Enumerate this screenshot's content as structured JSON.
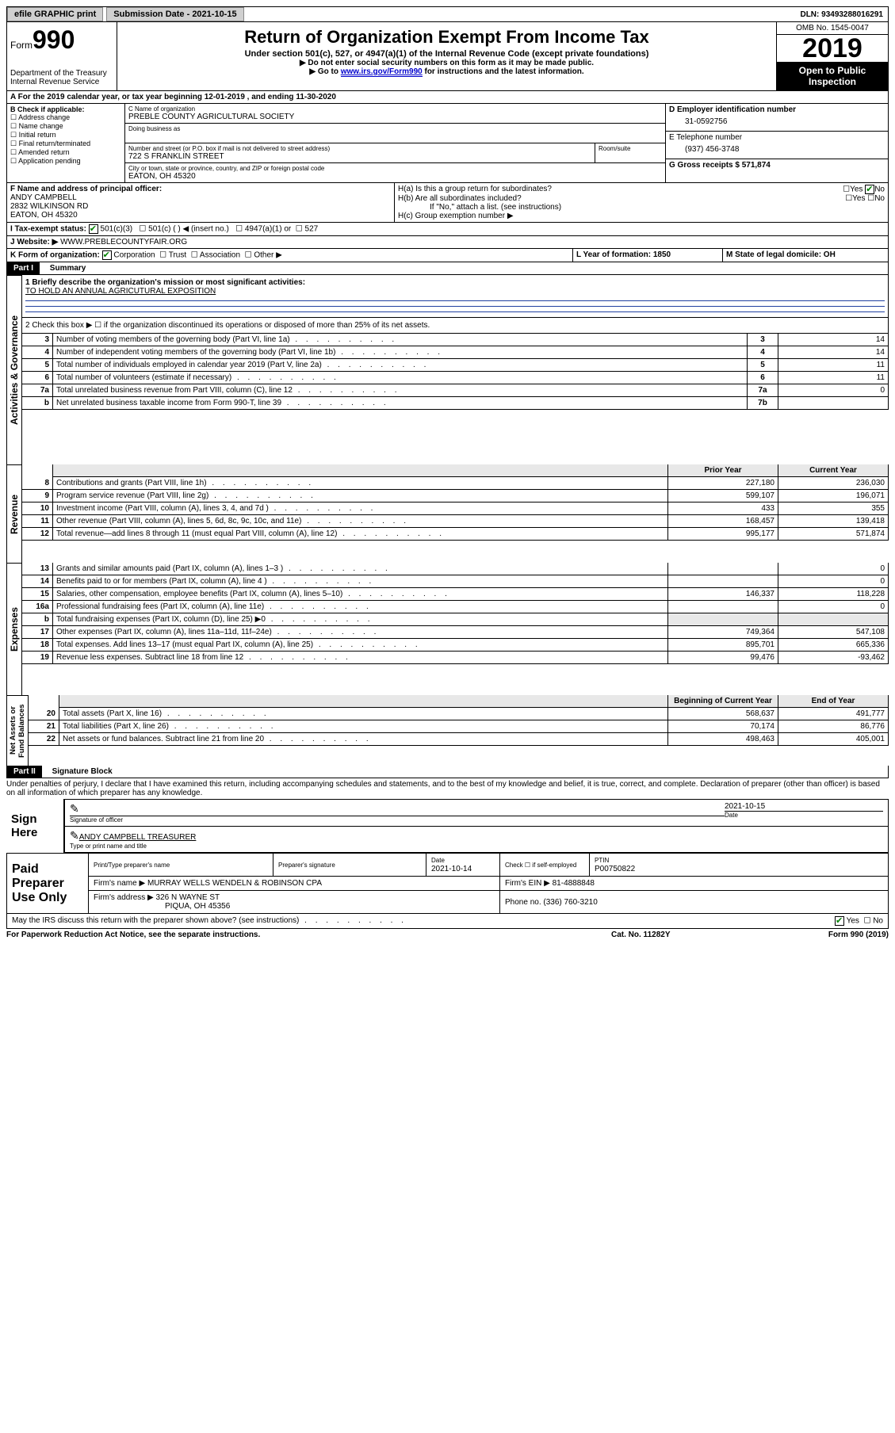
{
  "topbar": {
    "efile": "efile GRAPHIC print",
    "submission_label": "Submission Date - 2021-10-15",
    "dln": "DLN: 93493288016291"
  },
  "header": {
    "form_prefix": "Form",
    "form_number": "990",
    "dept": "Department of the Treasury\nInternal Revenue Service",
    "title": "Return of Organization Exempt From Income Tax",
    "subtitle": "Under section 501(c), 527, or 4947(a)(1) of the Internal Revenue Code (except private foundations)",
    "note1": "▶ Do not enter social security numbers on this form as it may be made public.",
    "note2_pre": "▶ Go to ",
    "note2_link": "www.irs.gov/Form990",
    "note2_post": " for instructions and the latest information.",
    "omb": "OMB No. 1545-0047",
    "year": "2019",
    "inspect": "Open to Public Inspection"
  },
  "A": {
    "line": "A For the 2019 calendar year, or tax year beginning 12-01-2019   , and ending 11-30-2020"
  },
  "B": {
    "label": "B Check if applicable:",
    "opts": [
      "Address change",
      "Name change",
      "Initial return",
      "Final return/terminated",
      "Amended return",
      "Application pending"
    ]
  },
  "C": {
    "name_label": "C Name of organization",
    "name": "PREBLE COUNTY AGRICULTURAL SOCIETY",
    "dba_label": "Doing business as",
    "addr_label": "Number and street (or P.O. box if mail is not delivered to street address)",
    "room_label": "Room/suite",
    "addr": "722 S FRANKLIN STREET",
    "city_label": "City or town, state or province, country, and ZIP or foreign postal code",
    "city": "EATON, OH  45320"
  },
  "D": {
    "label": "D Employer identification number",
    "ein": "31-0592756"
  },
  "E": {
    "label": "E Telephone number",
    "phone": "(937) 456-3748"
  },
  "G": {
    "label": "G Gross receipts $ 571,874"
  },
  "F": {
    "label": "F  Name and address of principal officer:",
    "name": "ANDY CAMPBELL",
    "addr1": "2832 WILKINSON RD",
    "addr2": "EATON, OH  45320"
  },
  "H": {
    "a": "H(a)  Is this a group return for subordinates?",
    "b": "H(b)  Are all subordinates included?",
    "note": "If \"No,\" attach a list. (see instructions)",
    "c": "H(c)  Group exemption number ▶"
  },
  "I": {
    "label": "I    Tax-exempt status:",
    "opts": [
      "501(c)(3)",
      "501(c) (  ) ◀ (insert no.)",
      "4947(a)(1) or",
      "527"
    ]
  },
  "J": {
    "label": "J    Website: ▶",
    "value": "  WWW.PREBLECOUNTYFAIR.ORG"
  },
  "K": {
    "label": "K Form of organization:",
    "opts": [
      "Corporation",
      "Trust",
      "Association",
      "Other ▶"
    ]
  },
  "L": {
    "label": "L Year of formation: 1850"
  },
  "M": {
    "label": "M State of legal domicile: OH"
  },
  "part1": {
    "tag": "Part I",
    "title": "Summary",
    "mission_label": "1   Briefly describe the organization's mission or most significant activities:",
    "mission": "TO HOLD AN ANNUAL AGRICUTURAL EXPOSITION",
    "line2": "2    Check this box ▶ ☐  if the organization discontinued its operations or disposed of more than 25% of its net assets.",
    "gov_label": "Activities & Governance",
    "rev_label": "Revenue",
    "exp_label": "Expenses",
    "na_label": "Net Assets or Fund Balances",
    "prior_header": "Prior Year",
    "current_header": "Current Year",
    "begin_header": "Beginning of Current Year",
    "end_header": "End of Year",
    "rows_gov": [
      {
        "n": "3",
        "t": "Number of voting members of the governing body (Part VI, line 1a)",
        "b": "3",
        "v": "14"
      },
      {
        "n": "4",
        "t": "Number of independent voting members of the governing body (Part VI, line 1b)",
        "b": "4",
        "v": "14"
      },
      {
        "n": "5",
        "t": "Total number of individuals employed in calendar year 2019 (Part V, line 2a)",
        "b": "5",
        "v": "11"
      },
      {
        "n": "6",
        "t": "Total number of volunteers (estimate if necessary)",
        "b": "6",
        "v": "11"
      },
      {
        "n": "7a",
        "t": "Total unrelated business revenue from Part VIII, column (C), line 12",
        "b": "7a",
        "v": "0"
      },
      {
        "n": "b",
        "t": "Net unrelated business taxable income from Form 990-T, line 39",
        "b": "7b",
        "v": ""
      }
    ],
    "rows_rev": [
      {
        "n": "8",
        "t": "Contributions and grants (Part VIII, line 1h)",
        "p": "227,180",
        "c": "236,030"
      },
      {
        "n": "9",
        "t": "Program service revenue (Part VIII, line 2g)",
        "p": "599,107",
        "c": "196,071"
      },
      {
        "n": "10",
        "t": "Investment income (Part VIII, column (A), lines 3, 4, and 7d )",
        "p": "433",
        "c": "355"
      },
      {
        "n": "11",
        "t": "Other revenue (Part VIII, column (A), lines 5, 6d, 8c, 9c, 10c, and 11e)",
        "p": "168,457",
        "c": "139,418"
      },
      {
        "n": "12",
        "t": "Total revenue—add lines 8 through 11 (must equal Part VIII, column (A), line 12)",
        "p": "995,177",
        "c": "571,874"
      }
    ],
    "rows_exp": [
      {
        "n": "13",
        "t": "Grants and similar amounts paid (Part IX, column (A), lines 1–3 )",
        "p": "",
        "c": "0"
      },
      {
        "n": "14",
        "t": "Benefits paid to or for members (Part IX, column (A), line 4 )",
        "p": "",
        "c": "0"
      },
      {
        "n": "15",
        "t": "Salaries, other compensation, employee benefits (Part IX, column (A), lines 5–10)",
        "p": "146,337",
        "c": "118,228"
      },
      {
        "n": "16a",
        "t": "Professional fundraising fees (Part IX, column (A), line 11e)",
        "p": "",
        "c": "0"
      },
      {
        "n": "b",
        "t": "Total fundraising expenses (Part IX, column (D), line 25) ▶0",
        "p": "shade",
        "c": "shade"
      },
      {
        "n": "17",
        "t": "Other expenses (Part IX, column (A), lines 11a–11d, 11f–24e)",
        "p": "749,364",
        "c": "547,108"
      },
      {
        "n": "18",
        "t": "Total expenses. Add lines 13–17 (must equal Part IX, column (A), line 25)",
        "p": "895,701",
        "c": "665,336"
      },
      {
        "n": "19",
        "t": "Revenue less expenses. Subtract line 18 from line 12",
        "p": "99,476",
        "c": "-93,462"
      }
    ],
    "rows_na": [
      {
        "n": "20",
        "t": "Total assets (Part X, line 16)",
        "p": "568,637",
        "c": "491,777"
      },
      {
        "n": "21",
        "t": "Total liabilities (Part X, line 26)",
        "p": "70,174",
        "c": "86,776"
      },
      {
        "n": "22",
        "t": "Net assets or fund balances. Subtract line 21 from line 20",
        "p": "498,463",
        "c": "405,001"
      }
    ]
  },
  "part2": {
    "tag": "Part II",
    "title": "Signature Block",
    "perjury": "Under penalties of perjury, I declare that I have examined this return, including accompanying schedules and statements, and to the best of my knowledge and belief, it is true, correct, and complete. Declaration of preparer (other than officer) is based on all information of which preparer has any knowledge.",
    "sign_here": "Sign Here",
    "sig_officer": "Signature of officer",
    "sig_date": "2021-10-15",
    "date_label": "Date",
    "officer_name": "ANDY CAMPBELL  TREASURER",
    "type_name": "Type or print name and title",
    "paid": "Paid Preparer Use Only",
    "prep_name_label": "Print/Type preparer's name",
    "prep_sig_label": "Preparer's signature",
    "prep_date_label": "Date",
    "prep_date": "2021-10-14",
    "check_label": "Check ☐ if self-employed",
    "ptin_label": "PTIN",
    "ptin": "P00750822",
    "firm_name_label": "Firm's name    ▶",
    "firm_name": "MURRAY WELLS WENDELN & ROBINSON CPA",
    "firm_ein_label": "Firm's EIN ▶",
    "firm_ein": "81-4888848",
    "firm_addr_label": "Firm's address ▶",
    "firm_addr1": "326 N WAYNE ST",
    "firm_addr2": "PIQUA, OH  45356",
    "firm_phone_label": "Phone no. (336) 760-3210",
    "discuss": "May the IRS discuss this return with the preparer shown above? (see instructions)"
  },
  "footer": {
    "left": "For Paperwork Reduction Act Notice, see the separate instructions.",
    "mid": "Cat. No. 11282Y",
    "right": "Form 990 (2019)"
  },
  "colors": {
    "link": "#0000cc",
    "check": "#008000"
  }
}
